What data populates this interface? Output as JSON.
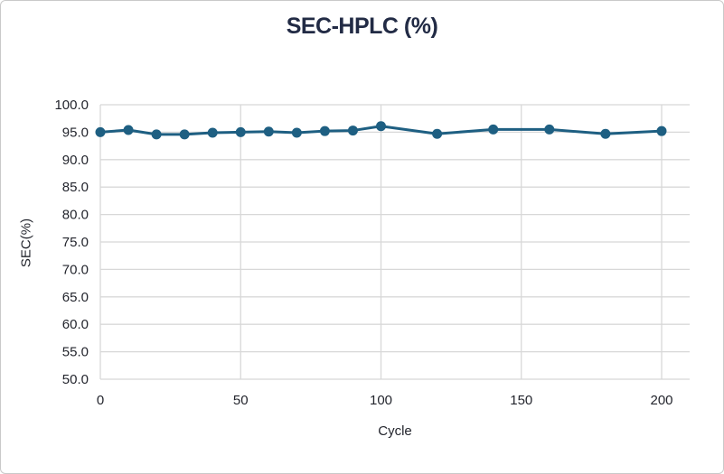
{
  "chart_data": {
    "type": "line",
    "title": "SEC-HPLC (%)",
    "xlabel": "Cycle",
    "ylabel": "SEC(%)",
    "x": [
      0,
      10,
      20,
      30,
      40,
      50,
      60,
      70,
      80,
      90,
      100,
      120,
      140,
      160,
      180,
      200
    ],
    "series": [
      {
        "name": "SEC-HPLC",
        "values": [
          95.0,
          95.4,
          94.6,
          94.6,
          94.9,
          95.0,
          95.1,
          94.9,
          95.2,
          95.3,
          96.1,
          94.7,
          95.5,
          95.5,
          94.7,
          95.2
        ]
      }
    ],
    "xlim": [
      0,
      210
    ],
    "ylim": [
      50.0,
      100.0
    ],
    "xticks": [
      0,
      50,
      100,
      150,
      200
    ],
    "xtick_labels": [
      "0",
      "50",
      "100",
      "150",
      "200"
    ],
    "yticks": [
      50,
      55,
      60,
      65,
      70,
      75,
      80,
      85,
      90,
      95,
      100
    ],
    "ytick_labels": [
      "50.0",
      "55.0",
      "60.0",
      "65.0",
      "70.0",
      "75.0",
      "80.0",
      "85.0",
      "90.0",
      "95.0",
      "100.0"
    ],
    "grid": true,
    "legend_position": "none",
    "line_color": "#1e5f82",
    "marker": "circle",
    "marker_color": "#1e5f82",
    "grid_color": "#d8d8d8",
    "title_color": "#222b45",
    "tick_color": "#23252d"
  }
}
